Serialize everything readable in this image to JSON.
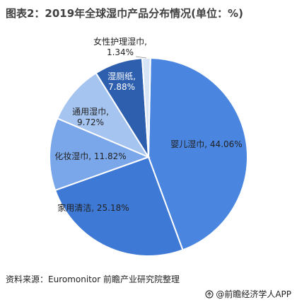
{
  "title": "图表2：2019年全球湿巾产品分布情况(单位：%)",
  "source": "资料来源：Euromonitor 前瞻产业研究院整理",
  "brand": "@前瞻经济学人APP",
  "chart_data": {
    "type": "pie",
    "title": "图表2：2019年全球湿巾产品分布情况(单位：%)",
    "slices": [
      {
        "label": "婴儿湿巾",
        "value": 44.06,
        "display": "婴儿湿巾, 44.06%",
        "color": "#4a86e0"
      },
      {
        "label": "家用清洁",
        "value": 25.18,
        "display": "家用清洁, 25.18%",
        "color": "#3e79d6"
      },
      {
        "label": "化妆湿巾",
        "value": 11.82,
        "display": "化妆湿巾, 11.82%",
        "color": "#7aa7ea"
      },
      {
        "label": "通用湿巾",
        "value": 9.72,
        "display": "通用湿巾, 9.72%",
        "color": "#a5c4f0"
      },
      {
        "label": "湿厕纸",
        "value": 7.88,
        "display": "湿厕纸, 7.88%",
        "color": "#2e5fae"
      },
      {
        "label": "女性护理湿巾",
        "value": 1.34,
        "display": "女性护理湿巾, 1.34%",
        "color": "#d6e4f6"
      }
    ]
  }
}
